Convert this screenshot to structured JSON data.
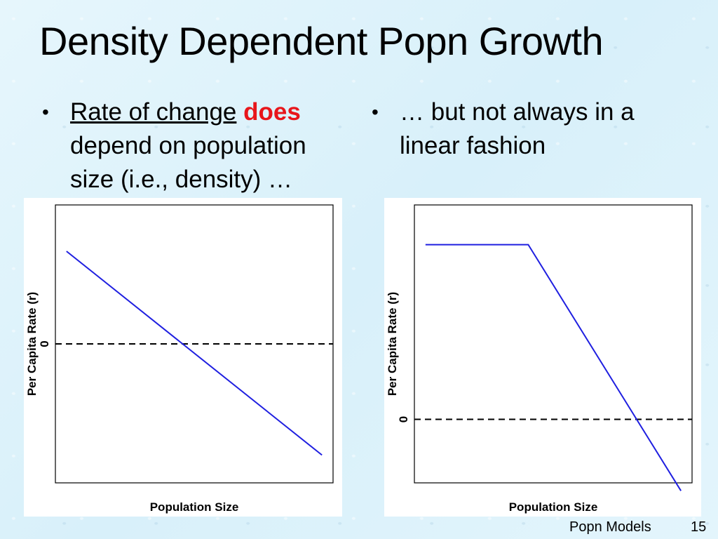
{
  "title": "Density Dependent Popn Growth",
  "bullets": {
    "left": {
      "underlined": "Rate of change",
      "emphasis": "does",
      "rest": "depend on population size (i.e., density) …"
    },
    "right": {
      "text": "… but not always in a linear fashion"
    }
  },
  "colors": {
    "line": "#1f1fe0",
    "emphasis": "#e8161b",
    "reference_line": "#000000"
  },
  "chart_data": [
    {
      "type": "line",
      "xlabel": "Population Size",
      "ylabel": "Per Capita Rate (r)",
      "y_ticks": [
        "0"
      ],
      "xlim": [
        0,
        100
      ],
      "ylim": [
        -1.5,
        1.5
      ],
      "reference_line": {
        "y": 0,
        "style": "dashed"
      },
      "series": [
        {
          "x": [
            4,
            96
          ],
          "y": [
            1.0,
            -1.2
          ]
        }
      ]
    },
    {
      "type": "line",
      "xlabel": "Population Size",
      "ylabel": "Per Capita Rate (r)",
      "y_ticks": [
        "0"
      ],
      "xlim": [
        0,
        100
      ],
      "ylim": [
        -0.8,
        2.7
      ],
      "reference_line": {
        "y": 0,
        "style": "dashed"
      },
      "series": [
        {
          "x": [
            4,
            41,
            96
          ],
          "y": [
            2.2,
            2.2,
            -0.9
          ]
        }
      ]
    }
  ],
  "footer": {
    "label": "Popn Models",
    "page": "15"
  }
}
